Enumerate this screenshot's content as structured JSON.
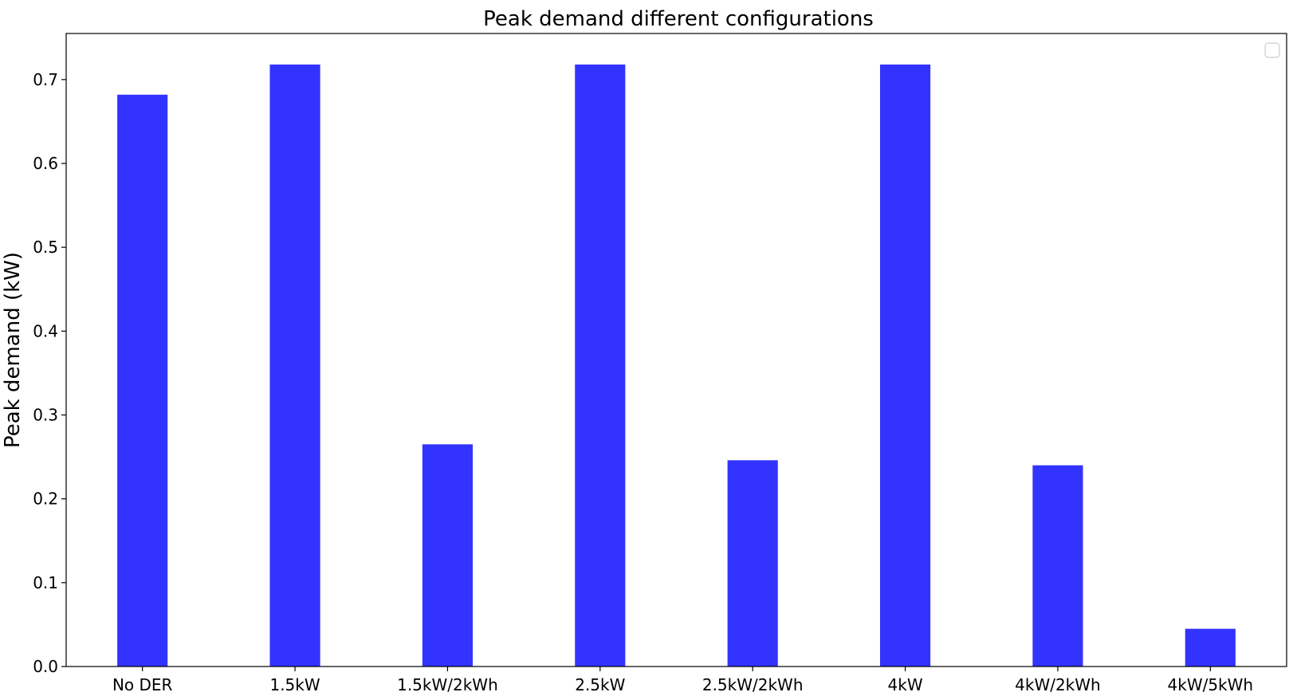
{
  "chart_data": {
    "type": "bar",
    "title": "Peak demand different configurations",
    "xlabel": "",
    "ylabel": "Peak demand (kW)",
    "categories": [
      "No DER",
      "1.5kW",
      "1.5kW/2kWh",
      "2.5kW",
      "2.5kW/2kWh",
      "4kW",
      "4kW/2kWh",
      "4kW/5kWh"
    ],
    "values": [
      0.682,
      0.718,
      0.265,
      0.718,
      0.246,
      0.718,
      0.24,
      0.045
    ],
    "ylim": [
      0,
      0.755
    ],
    "yticks": [
      0.0,
      0.1,
      0.2,
      0.3,
      0.4,
      0.5,
      0.6,
      0.7
    ],
    "ytick_labels": [
      "0.0",
      "0.1",
      "0.2",
      "0.3",
      "0.4",
      "0.5",
      "0.6",
      "0.7"
    ],
    "grid": false,
    "legend": "top-right, empty",
    "bar_color": "#3333ff"
  }
}
